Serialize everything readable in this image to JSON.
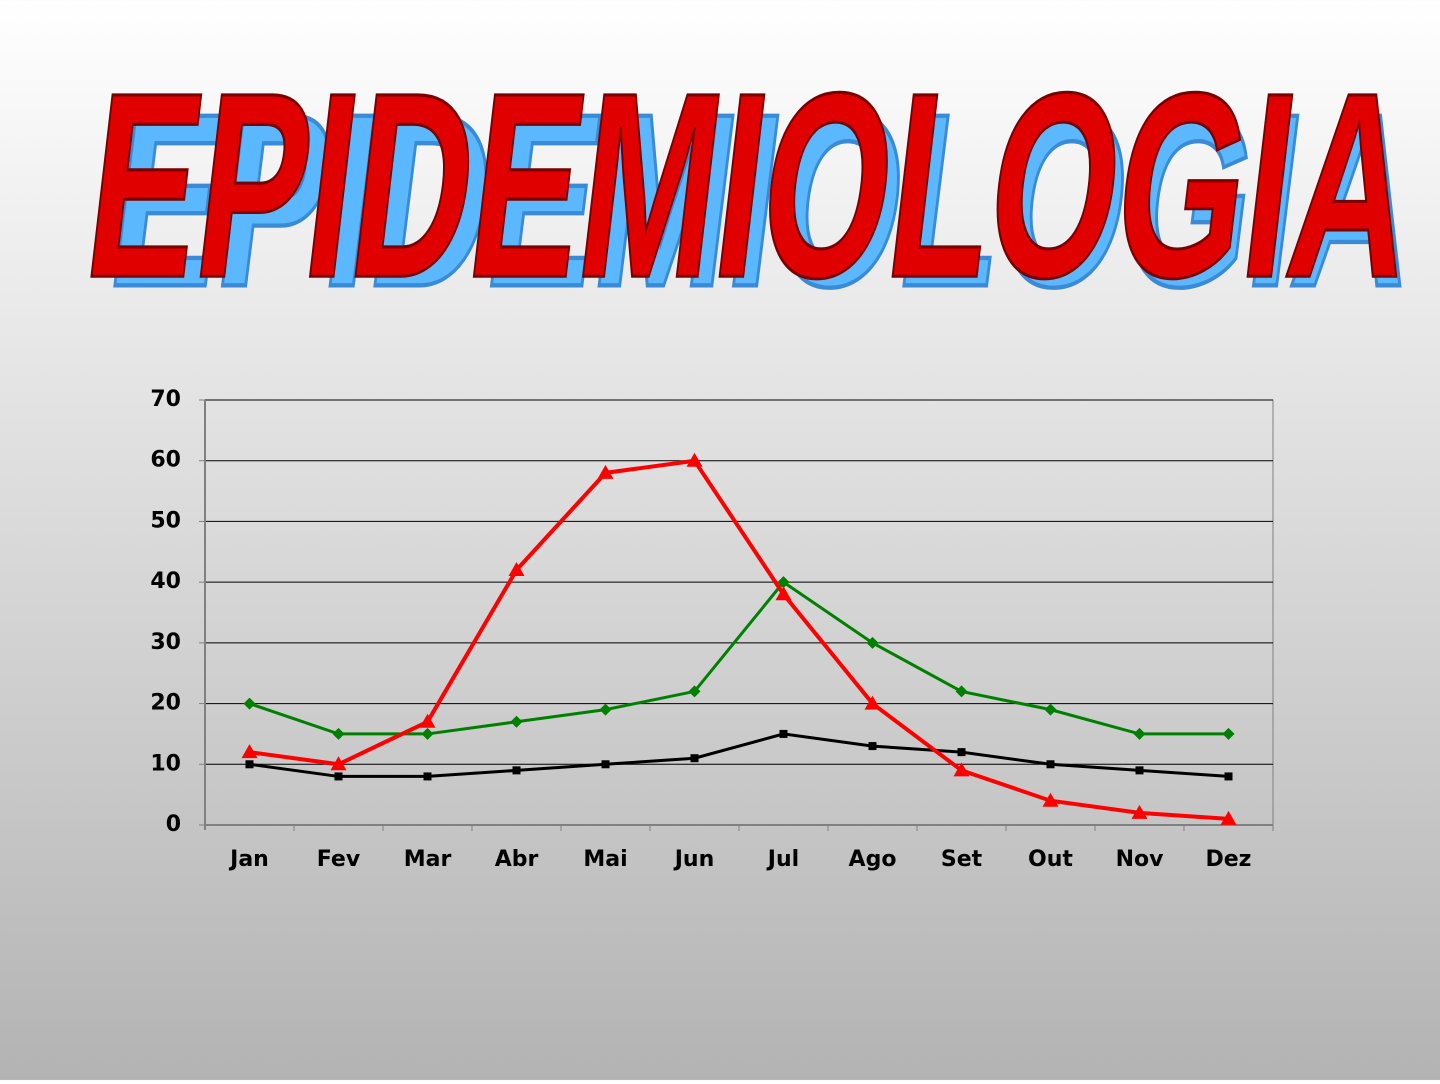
{
  "chart_data": {
    "type": "line",
    "title": "EPIDEMIOLOGIA",
    "categories": [
      "Jan",
      "Fev",
      "Mar",
      "Abr",
      "Mai",
      "Jun",
      "Jul",
      "Ago",
      "Set",
      "Out",
      "Nov",
      "Dez"
    ],
    "series": [
      {
        "color": "#000000",
        "marker": "square",
        "values": [
          10,
          8,
          8,
          9,
          10,
          11,
          15,
          13,
          12,
          10,
          9,
          8
        ]
      },
      {
        "color": "#008000",
        "marker": "diamond",
        "values": [
          20,
          15,
          15,
          17,
          19,
          22,
          40,
          30,
          22,
          19,
          15,
          15
        ]
      },
      {
        "color": "#ff0000",
        "marker": "triangle",
        "values": [
          12,
          10,
          17,
          42,
          58,
          60,
          38,
          20,
          9,
          4,
          2,
          1
        ]
      }
    ],
    "ylim": [
      0,
      70
    ],
    "yticks": [
      0,
      10,
      20,
      30,
      40,
      50,
      60,
      70
    ],
    "grid": true
  }
}
